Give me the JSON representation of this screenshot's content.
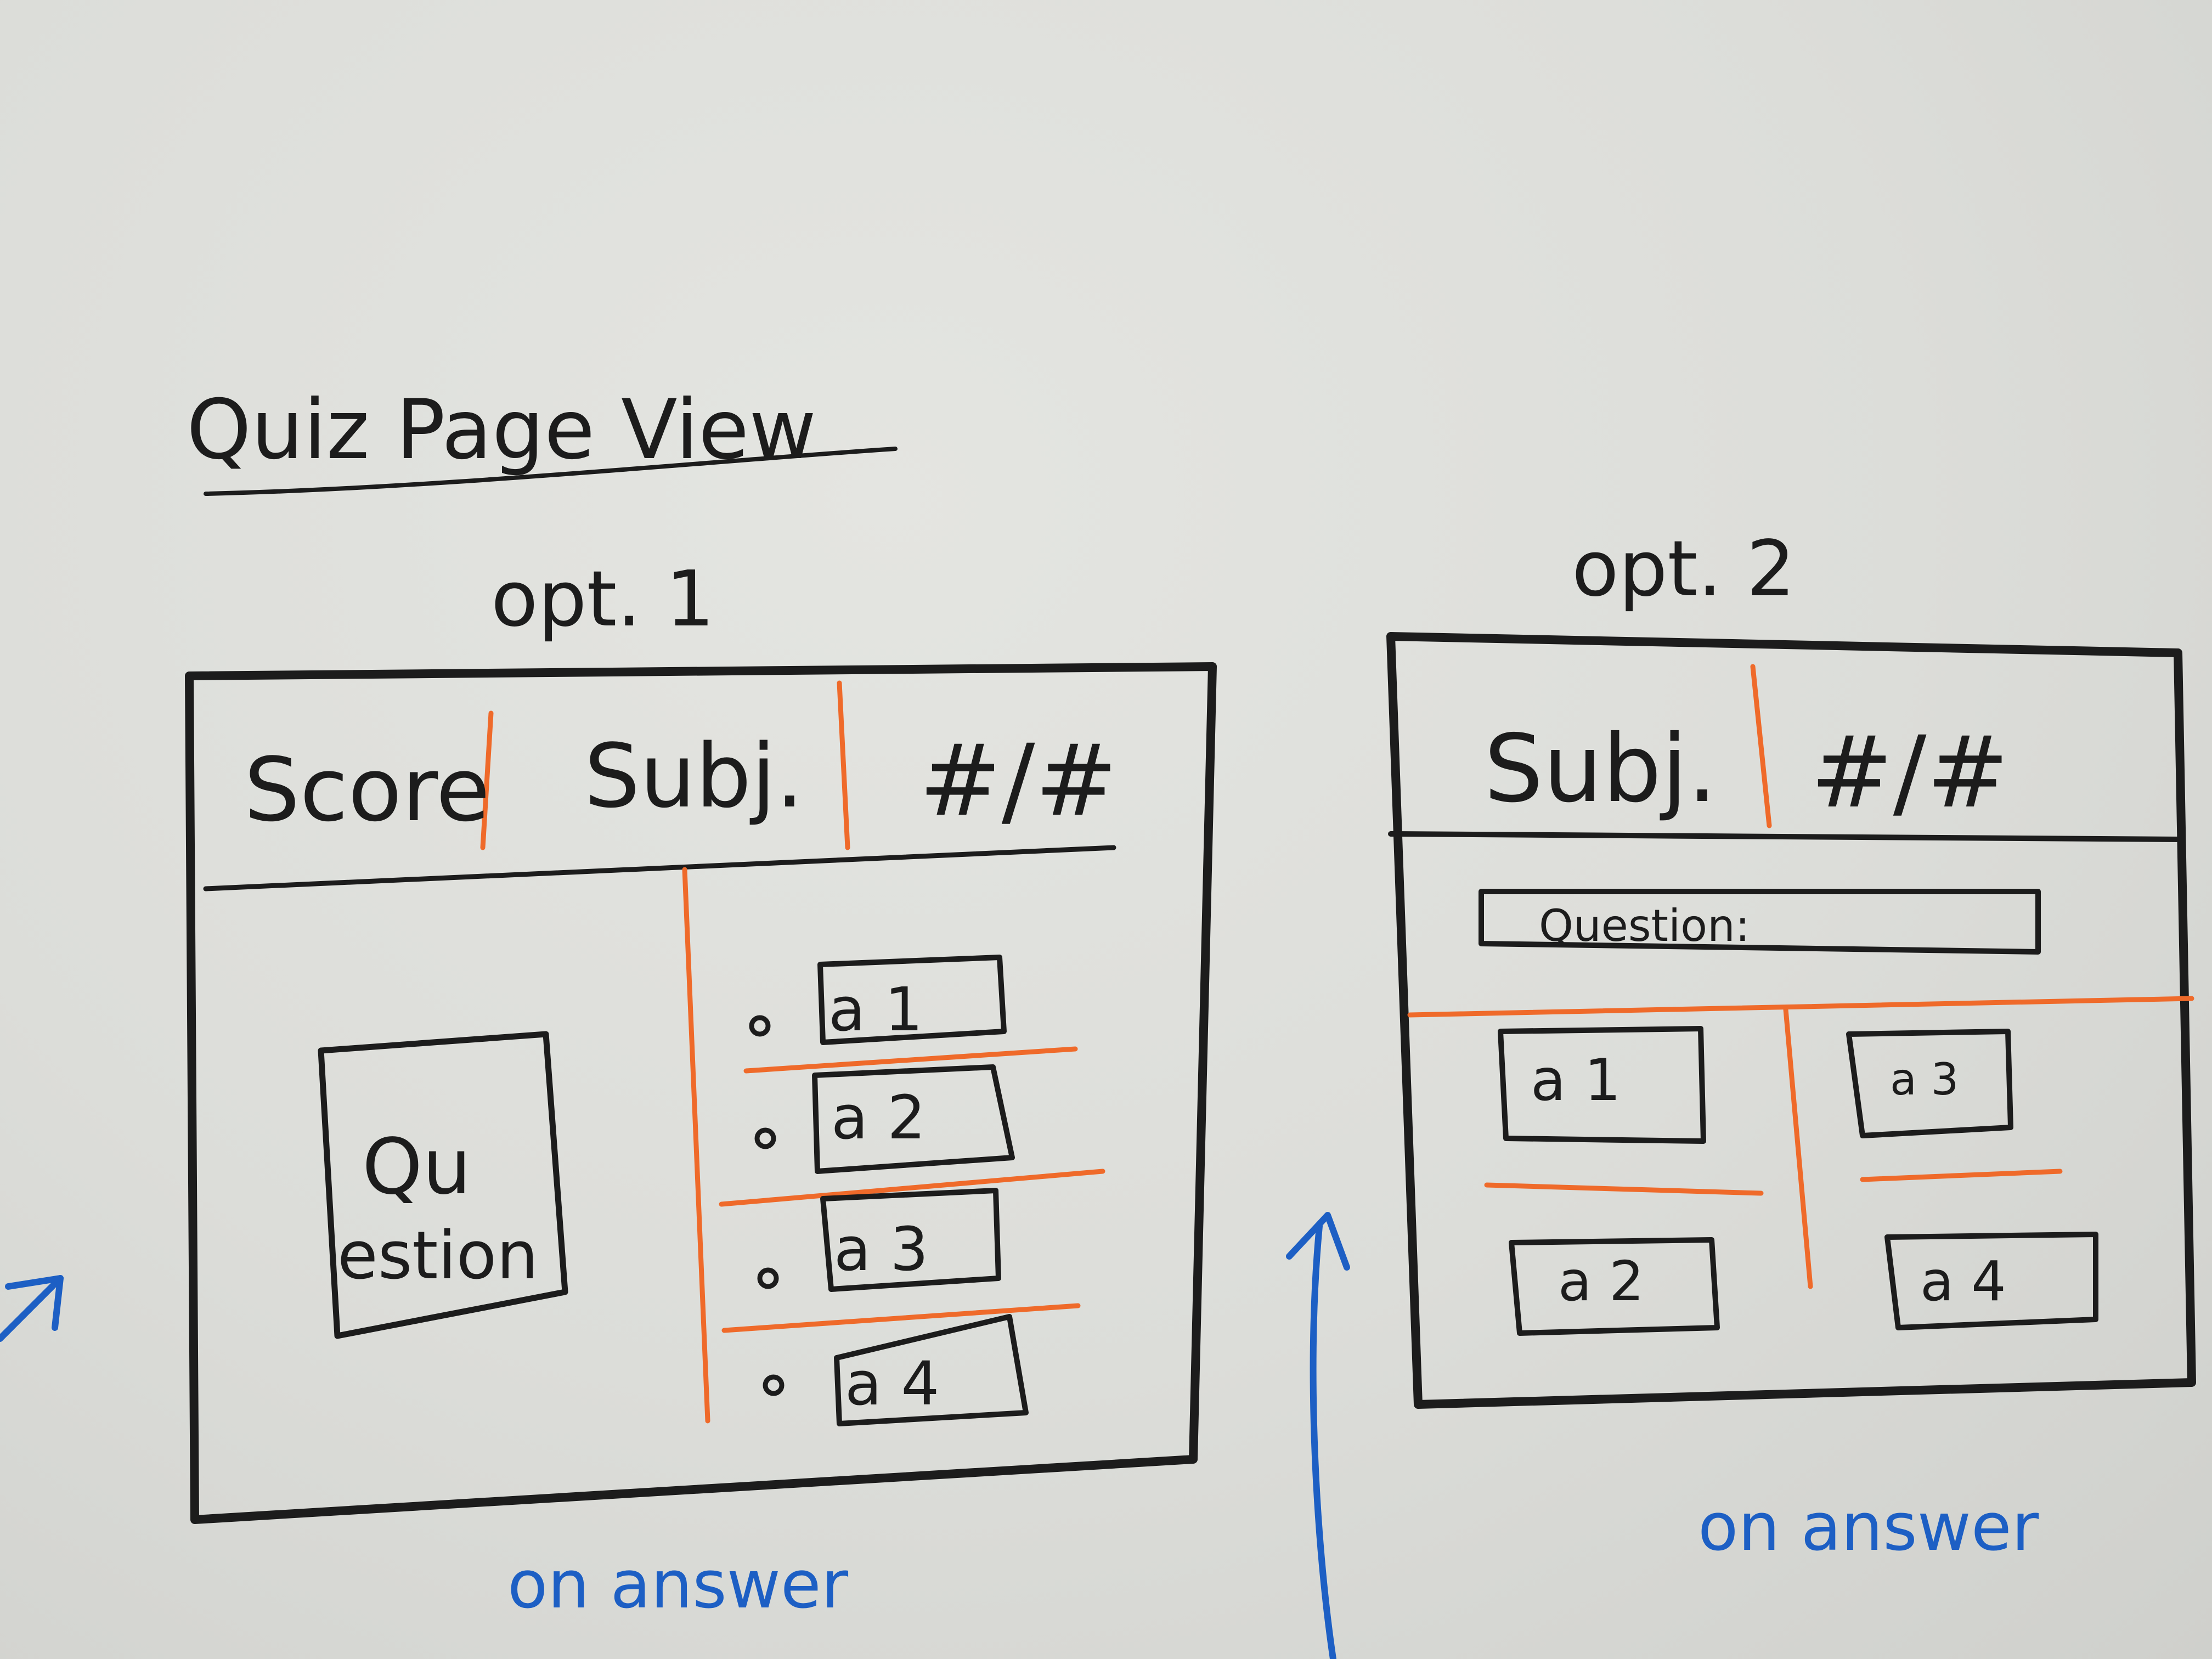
{
  "title": "Quiz Page View",
  "option1": {
    "label": "opt. 1",
    "header": [
      "Score",
      "Subj.",
      "#/#"
    ],
    "question": [
      "Qu",
      "estion"
    ],
    "answers": [
      "a 1",
      "a 2",
      "a 3",
      "a 4"
    ],
    "caption": "on answer"
  },
  "option2": {
    "label": "opt. 2",
    "header": [
      "Subj.",
      "#/#"
    ],
    "question": "Question:",
    "answers": [
      "a 1",
      "a 2",
      "a 3",
      "a 4"
    ],
    "caption": "on answer"
  },
  "colors": {
    "ink": "#1c1c1c",
    "divider": "#ef6a2a",
    "annotation": "#1d5fc4"
  }
}
